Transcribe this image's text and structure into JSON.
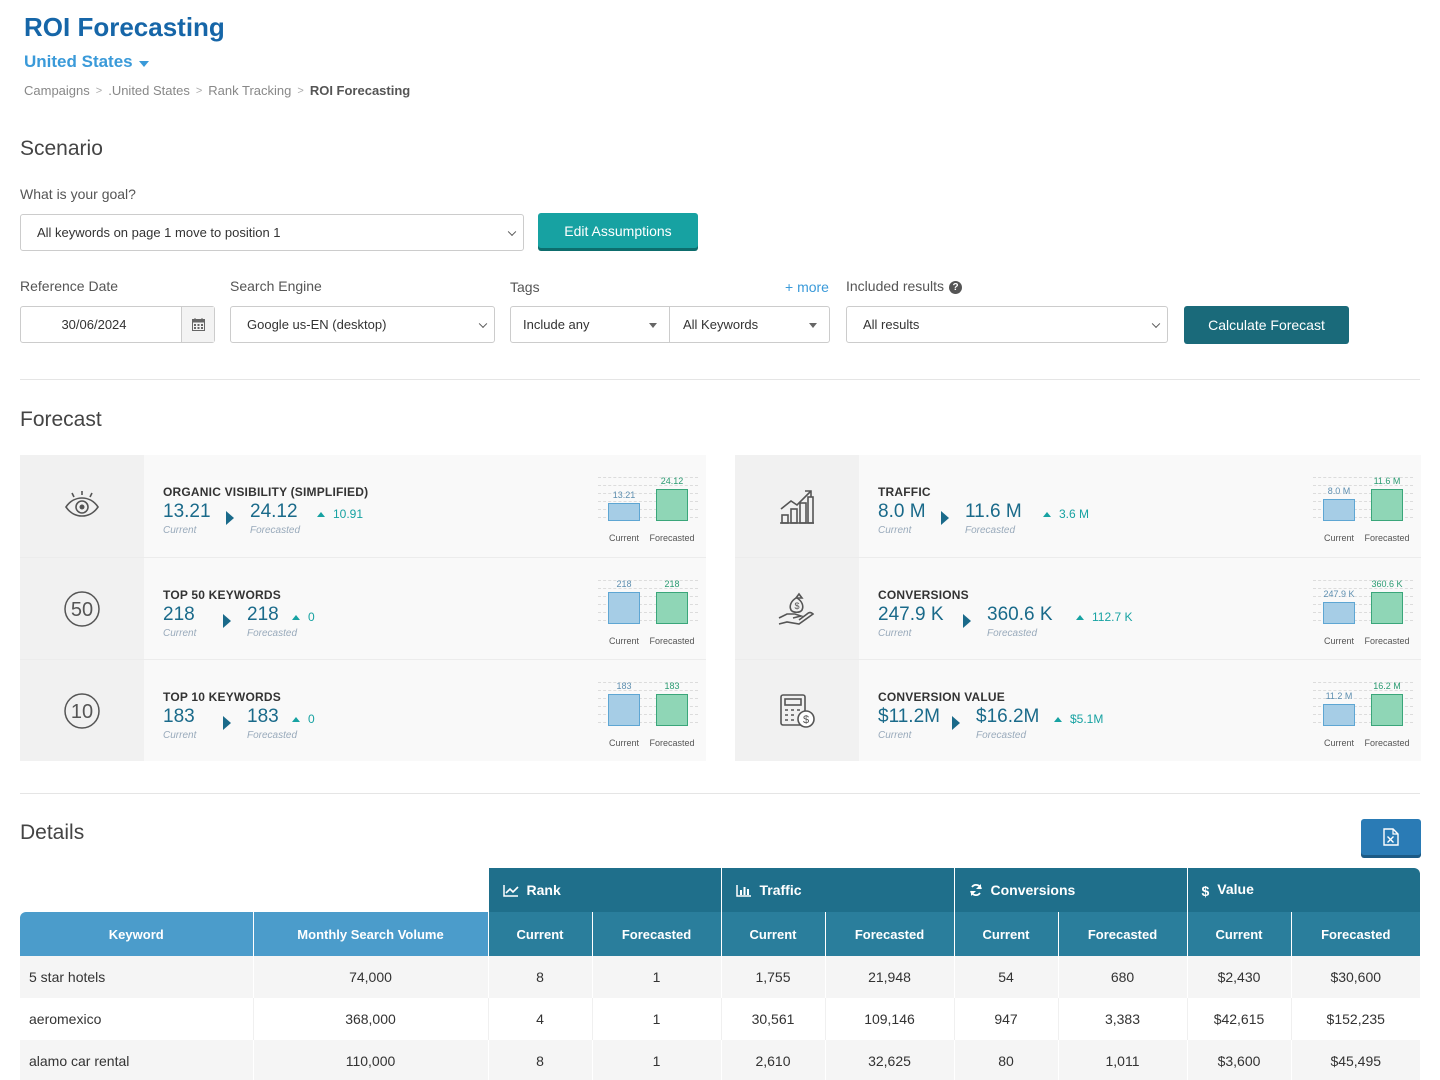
{
  "header": {
    "title": "ROI Forecasting",
    "country": "United States",
    "breadcrumb": [
      "Campaigns",
      ".United States",
      "Rank Tracking",
      "ROI Forecasting"
    ]
  },
  "scenario": {
    "section_title": "Scenario",
    "goal_label": "What is your goal?",
    "goal_value": "All keywords on page 1 move to position 1",
    "edit_button": "Edit Assumptions",
    "reference_date_label": "Reference Date",
    "reference_date_value": "30/06/2024",
    "search_engine_label": "Search Engine",
    "search_engine_value": "Google us-EN (desktop)",
    "tags_label": "Tags",
    "more_link": "+ more",
    "tags_match": "Include any",
    "tags_value": "All Keywords",
    "included_label": "Included results",
    "included_value": "All results",
    "calculate_button": "Calculate Forecast"
  },
  "forecast": {
    "section_title": "Forecast",
    "current_label": "Current",
    "forecasted_label": "Forecasted",
    "left": [
      {
        "icon": "eye-icon",
        "name": "ORGANIC VISIBILITY (SIMPLIFIED)",
        "current": "13.21",
        "forecasted": "24.12",
        "delta": "10.91",
        "current_num": 13.21,
        "forecast_num": 24.12
      },
      {
        "icon": "fifty-icon",
        "name": "TOP 50 KEYWORDS",
        "current": "218",
        "forecasted": "218",
        "delta": "0",
        "current_num": 218,
        "forecast_num": 218
      },
      {
        "icon": "ten-icon",
        "name": "TOP 10 KEYWORDS",
        "current": "183",
        "forecasted": "183",
        "delta": "0",
        "current_num": 183,
        "forecast_num": 183
      }
    ],
    "right": [
      {
        "icon": "growth-chart-icon",
        "name": "TRAFFIC",
        "current": "8.0 M",
        "forecasted": "11.6 M",
        "delta": "3.6 M",
        "current_num": 8.0,
        "forecast_num": 11.6
      },
      {
        "icon": "money-bag-hand-icon",
        "name": "CONVERSIONS",
        "current": "247.9 K",
        "forecasted": "360.6 K",
        "delta": "112.7 K",
        "current_num": 247.9,
        "forecast_num": 360.6
      },
      {
        "icon": "calculator-dollar-icon",
        "name": "CONVERSION VALUE",
        "current": "$11.2M",
        "forecasted": "$16.2M",
        "delta": "$5.1M",
        "current_num": 11.2,
        "forecast_num": 16.2
      }
    ],
    "mini_labels_left": [
      [
        "13.21",
        "24.12"
      ],
      [
        "218",
        "218"
      ],
      [
        "183",
        "183"
      ]
    ],
    "mini_labels_right": [
      [
        "8.0 M",
        "11.6 M"
      ],
      [
        "247.9 K",
        "360.6 K"
      ],
      [
        "11.2 M",
        "16.2 M"
      ]
    ]
  },
  "details": {
    "section_title": "Details",
    "groups": [
      "Rank",
      "Traffic",
      "Conversions",
      "Value"
    ],
    "columns": [
      "Keyword",
      "Monthly Search Volume",
      "Current",
      "Forecasted",
      "Current",
      "Forecasted",
      "Current",
      "Forecasted",
      "Current",
      "Forecasted"
    ],
    "rows": [
      [
        "5 star hotels",
        "74,000",
        "8",
        "1",
        "1,755",
        "21,948",
        "54",
        "680",
        "$2,430",
        "$30,600"
      ],
      [
        "aeromexico",
        "368,000",
        "4",
        "1",
        "30,561",
        "109,146",
        "947",
        "3,383",
        "$42,615",
        "$152,235"
      ],
      [
        "alamo car rental",
        "110,000",
        "8",
        "1",
        "2,610",
        "32,625",
        "80",
        "1,011",
        "$3,600",
        "$45,495"
      ]
    ]
  },
  "colors": {
    "primary": "#1666a8",
    "teal": "#17a2a2",
    "dark_teal": "#1a6a7a",
    "table_header": "#1f6f8b",
    "bar_current": "#a6cde6",
    "bar_forecast": "#8fd6b6"
  }
}
